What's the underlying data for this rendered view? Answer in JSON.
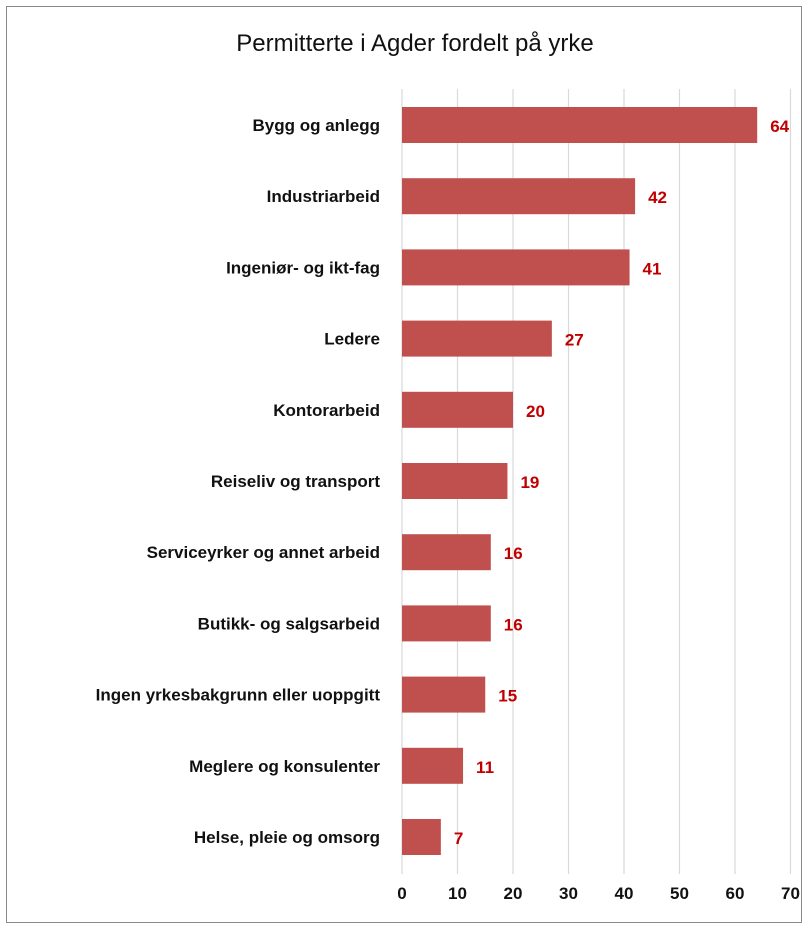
{
  "chart_data": {
    "type": "bar",
    "orientation": "horizontal",
    "title": "Permitterte i Agder fordelt på yrke",
    "categories": [
      "Bygg og anlegg",
      "Industriarbeid",
      "Ingeniør- og ikt-fag",
      "Ledere",
      "Kontorarbeid",
      "Reiseliv og transport",
      "Serviceyrker og annet arbeid",
      "Butikk- og salgsarbeid",
      "Ingen yrkesbakgrunn eller uoppgitt",
      "Meglere og konsulenter",
      "Helse, pleie og omsorg"
    ],
    "values": [
      64,
      42,
      41,
      27,
      20,
      19,
      16,
      16,
      15,
      11,
      7
    ],
    "xlim": [
      0,
      70
    ],
    "xticks": [
      0,
      10,
      20,
      30,
      40,
      50,
      60,
      70
    ],
    "grid": "vertical",
    "legend": "none",
    "bar_color": "#c0504d",
    "label_color": "#c00000",
    "xlabel": "",
    "ylabel": ""
  }
}
